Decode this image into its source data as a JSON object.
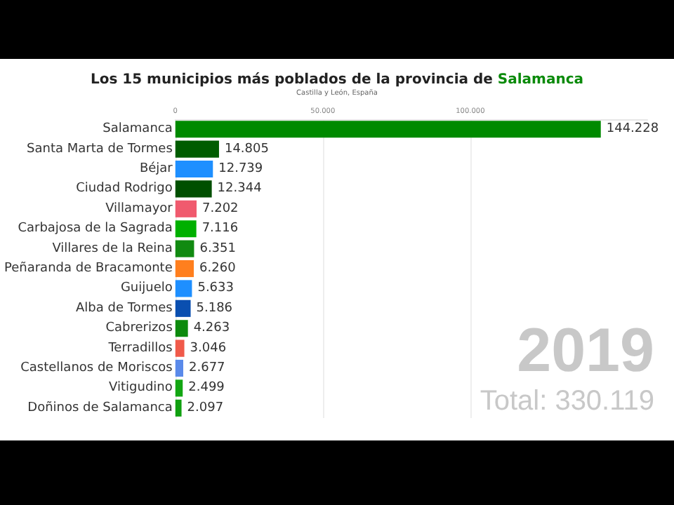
{
  "chart_data": {
    "type": "bar",
    "orientation": "horizontal",
    "title": "Los 15 municipios más poblados de la provincia de Salamanca",
    "subtitle": "Castilla y León, España",
    "categories": [
      "Salamanca",
      "Santa Marta de Tormes",
      "Béjar",
      "Ciudad Rodrigo",
      "Villamayor",
      "Carbajosa de la Sagrada",
      "Villares de la Reina",
      "Peñaranda de Bracamonte",
      "Guijuelo",
      "Alba de Tormes",
      "Cabrerizos",
      "Terradillos",
      "Castellanos de Moriscos",
      "Vitigudino",
      "Doñinos de Salamanca"
    ],
    "values": [
      144228,
      14805,
      12739,
      12344,
      7202,
      7116,
      6351,
      6260,
      5633,
      5186,
      4263,
      3046,
      2677,
      2499,
      2097
    ],
    "value_labels": [
      "144.228",
      "14.805",
      "12.739",
      "12.344",
      "7.202",
      "7.116",
      "6.351",
      "6.260",
      "5.633",
      "5.186",
      "4.263",
      "3.046",
      "2.677",
      "2.499",
      "2.097"
    ],
    "colors": [
      "#008a00",
      "#005c00",
      "#1e8fff",
      "#004f00",
      "#f05a6e",
      "#00b000",
      "#118a11",
      "#ff7f1e",
      "#1e8fff",
      "#0a4fb0",
      "#0d8a0d",
      "#f05a4a",
      "#5a8aea",
      "#13a613",
      "#10a010"
    ],
    "xlim": [
      0,
      160000
    ],
    "xticks": [
      0,
      {
        "value": 50000,
        "label": "50.000"
      },
      {
        "value": 100000,
        "label": "100.000"
      }
    ],
    "grid": "x",
    "annotations": [
      "2019",
      "Total: 330.119"
    ]
  }
}
